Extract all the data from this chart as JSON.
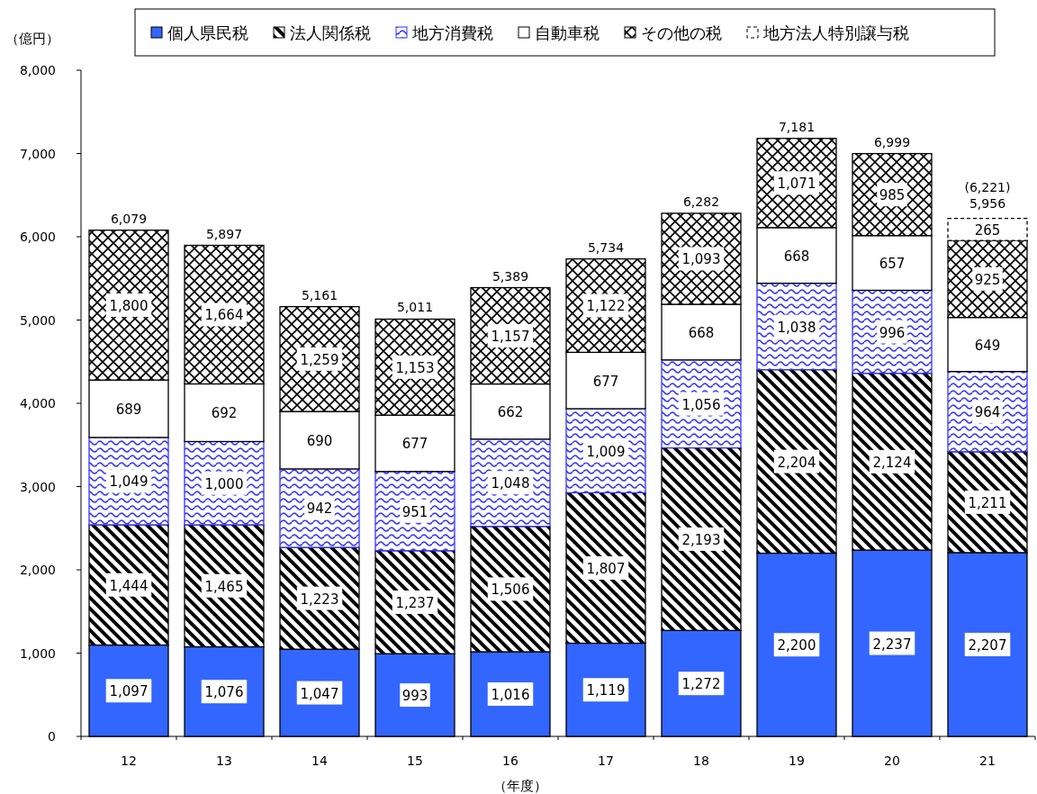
{
  "chart_data": {
    "type": "bar",
    "stacked": true,
    "ylabel": "（億円）",
    "xlabel": "（年度）",
    "categories": [
      "12",
      "13",
      "14",
      "15",
      "16",
      "17",
      "18",
      "19",
      "20",
      "21"
    ],
    "series": [
      {
        "name": "個人県民税",
        "color": "#3366ff",
        "values": [
          1097,
          1076,
          1047,
          993,
          1016,
          1119,
          1272,
          2200,
          2237,
          2207
        ],
        "value_labels": [
          "1,097",
          "1,076",
          "1,047",
          "993",
          "1,016",
          "1,119",
          "1,272",
          "2,200",
          "2,237",
          "2,207"
        ]
      },
      {
        "name": "法人関係税",
        "color": "#000000",
        "values": [
          1444,
          1465,
          1223,
          1237,
          1506,
          1807,
          2193,
          2204,
          2124,
          1211
        ],
        "value_labels": [
          "1,444",
          "1,465",
          "1,223",
          "1,237",
          "1,506",
          "1,807",
          "2,193",
          "2,204",
          "2,124",
          "1,211"
        ]
      },
      {
        "name": "地方消費税",
        "color": "#3333ff",
        "values": [
          1049,
          1000,
          942,
          951,
          1048,
          1009,
          1056,
          1038,
          996,
          964
        ],
        "value_labels": [
          "1,049",
          "1,000",
          "942",
          "951",
          "1,048",
          "1,009",
          "1,056",
          "1,038",
          "996",
          "964"
        ]
      },
      {
        "name": "自動車税",
        "color": "#ffffff",
        "values": [
          689,
          692,
          690,
          677,
          662,
          677,
          668,
          668,
          657,
          649
        ],
        "value_labels": [
          "689",
          "692",
          "690",
          "677",
          "662",
          "677",
          "668",
          "668",
          "657",
          "649"
        ]
      },
      {
        "name": "その他の税",
        "color": "#000000",
        "values": [
          1800,
          1664,
          1259,
          1153,
          1157,
          1122,
          1093,
          1071,
          985,
          925
        ],
        "value_labels": [
          "1,800",
          "1,664",
          "1,259",
          "1,153",
          "1,157",
          "1,122",
          "1,093",
          "1,071",
          "985",
          "925"
        ]
      },
      {
        "name": "地方法人特別譲与税",
        "color": "#ffffff",
        "values": [
          null,
          null,
          null,
          null,
          null,
          null,
          null,
          null,
          null,
          265
        ],
        "value_labels": [
          null,
          null,
          null,
          null,
          null,
          null,
          null,
          null,
          null,
          "265"
        ]
      }
    ],
    "ylim": [
      0,
      8000
    ],
    "yticks": [
      0,
      {
        "value": 1000,
        "label": "1,000"
      },
      {
        "value": 2000,
        "label": "2,000"
      },
      {
        "value": 3000,
        "label": "3,000"
      },
      {
        "value": 4000,
        "label": "4,000"
      },
      {
        "value": 5000,
        "label": "5,000"
      },
      {
        "value": 6000,
        "label": "6,000"
      },
      {
        "value": 7000,
        "label": "7,000"
      },
      {
        "value": 8000,
        "label": "8,000"
      }
    ],
    "totals": [
      "6,079",
      "5,897",
      "5,161",
      "5,011",
      "5,389",
      "5,734",
      "6,282",
      "7,181",
      "6,999",
      "(6,221)"
    ],
    "annotations": [
      {
        "text": "5,956",
        "x": "21",
        "y": 5956
      }
    ],
    "legend": "top"
  }
}
